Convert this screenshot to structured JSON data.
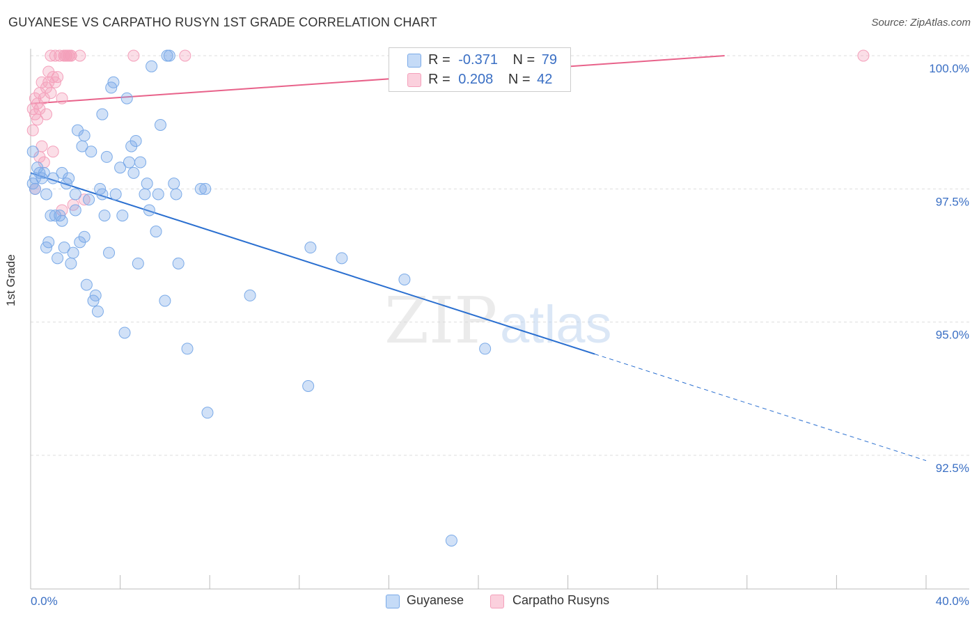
{
  "header": {
    "title": "GUYANESE VS CARPATHO RUSYN 1ST GRADE CORRELATION CHART",
    "source": "Source: ZipAtlas.com"
  },
  "colors": {
    "guyanese": "#7aaae8",
    "guyanese_line": "#2a6fd0",
    "carpatho": "#f4a0bb",
    "carpatho_line": "#e8628a",
    "grid": "#dddddd",
    "tick_label": "#3a6fc4"
  },
  "legend": {
    "row1": {
      "r_label": "R =",
      "r_value": "-0.371",
      "n_label": "N =",
      "n_value": "79"
    },
    "row2": {
      "r_label": "R =",
      "r_value": "0.208",
      "n_label": "N =",
      "n_value": "42"
    }
  },
  "bottom_legend": {
    "guyanese": "Guyanese",
    "carpatho": "Carpatho Rusyns"
  },
  "watermark": {
    "zip": "ZIP",
    "atlas": "atlas"
  },
  "chart_data": {
    "type": "scatter",
    "title": "GUYANESE VS CARPATHO RUSYN 1ST GRADE CORRELATION CHART",
    "xlabel": "",
    "ylabel": "1st Grade",
    "xlim": [
      0,
      40
    ],
    "ylim": [
      90.5,
      100.3
    ],
    "x_tick_labels": [
      "0.0%",
      "40.0%"
    ],
    "y_ticks": [
      92.5,
      95.0,
      97.5,
      100.0
    ],
    "y_tick_labels": [
      "92.5%",
      "95.0%",
      "97.5%",
      "100.0%"
    ],
    "grid": true,
    "legend_position": "top-center",
    "series": [
      {
        "name": "Guyanese",
        "r": -0.371,
        "n": 79,
        "trend": {
          "x0": 0,
          "y0": 97.8,
          "x1": 25.2,
          "y1": 94.4,
          "dash_x1": 40,
          "dash_y1": 92.4
        },
        "points": [
          [
            0.1,
            97.6
          ],
          [
            0.1,
            98.2
          ],
          [
            0.2,
            97.7
          ],
          [
            0.2,
            97.5
          ],
          [
            0.3,
            97.9
          ],
          [
            0.4,
            97.8
          ],
          [
            0.5,
            97.7
          ],
          [
            0.6,
            97.8
          ],
          [
            0.7,
            97.4
          ],
          [
            0.7,
            96.4
          ],
          [
            0.8,
            96.5
          ],
          [
            0.9,
            97.0
          ],
          [
            1.0,
            97.7
          ],
          [
            1.1,
            97.0
          ],
          [
            1.2,
            96.2
          ],
          [
            1.3,
            97.0
          ],
          [
            1.4,
            96.9
          ],
          [
            1.4,
            97.8
          ],
          [
            1.5,
            96.4
          ],
          [
            1.6,
            97.6
          ],
          [
            1.7,
            97.7
          ],
          [
            1.8,
            96.1
          ],
          [
            1.9,
            96.3
          ],
          [
            2.0,
            97.4
          ],
          [
            2.0,
            97.1
          ],
          [
            2.1,
            98.6
          ],
          [
            2.2,
            96.5
          ],
          [
            2.3,
            98.3
          ],
          [
            2.4,
            96.6
          ],
          [
            2.4,
            98.5
          ],
          [
            2.5,
            95.7
          ],
          [
            2.6,
            97.3
          ],
          [
            2.7,
            98.2
          ],
          [
            2.8,
            95.4
          ],
          [
            2.9,
            95.5
          ],
          [
            3.0,
            95.2
          ],
          [
            3.1,
            97.5
          ],
          [
            3.2,
            97.4
          ],
          [
            3.2,
            98.9
          ],
          [
            3.3,
            97.0
          ],
          [
            3.4,
            98.1
          ],
          [
            3.5,
            96.3
          ],
          [
            3.6,
            99.4
          ],
          [
            3.7,
            99.5
          ],
          [
            3.8,
            97.4
          ],
          [
            4.0,
            97.9
          ],
          [
            4.1,
            97.0
          ],
          [
            4.2,
            94.8
          ],
          [
            4.3,
            99.2
          ],
          [
            4.4,
            98.0
          ],
          [
            4.5,
            98.3
          ],
          [
            4.6,
            97.8
          ],
          [
            4.7,
            98.4
          ],
          [
            4.8,
            96.1
          ],
          [
            4.9,
            98.0
          ],
          [
            5.1,
            97.4
          ],
          [
            5.2,
            97.6
          ],
          [
            5.3,
            97.1
          ],
          [
            5.4,
            99.8
          ],
          [
            5.6,
            96.7
          ],
          [
            5.7,
            97.4
          ],
          [
            5.8,
            98.7
          ],
          [
            6.0,
            95.4
          ],
          [
            6.1,
            100.0
          ],
          [
            6.2,
            100.0
          ],
          [
            6.4,
            97.6
          ],
          [
            6.5,
            97.4
          ],
          [
            6.6,
            96.1
          ],
          [
            7.0,
            94.5
          ],
          [
            7.6,
            97.5
          ],
          [
            7.8,
            97.5
          ],
          [
            7.9,
            93.3
          ],
          [
            9.8,
            95.5
          ],
          [
            12.4,
            93.8
          ],
          [
            12.5,
            96.4
          ],
          [
            13.9,
            96.2
          ],
          [
            16.7,
            95.8
          ],
          [
            18.8,
            90.9
          ],
          [
            20.3,
            94.5
          ]
        ]
      },
      {
        "name": "Carpatho Rusyns",
        "r": 0.208,
        "n": 42,
        "trend": {
          "x0": 0,
          "y0": 99.1,
          "x1": 31.0,
          "y1": 100.0
        },
        "points": [
          [
            0.1,
            99.0
          ],
          [
            0.1,
            98.6
          ],
          [
            0.2,
            99.2
          ],
          [
            0.2,
            98.9
          ],
          [
            0.3,
            99.1
          ],
          [
            0.3,
            98.8
          ],
          [
            0.4,
            99.3
          ],
          [
            0.4,
            99.0
          ],
          [
            0.5,
            98.3
          ],
          [
            0.5,
            99.5
          ],
          [
            0.6,
            99.2
          ],
          [
            0.6,
            98.0
          ],
          [
            0.7,
            99.4
          ],
          [
            0.7,
            98.9
          ],
          [
            0.8,
            99.5
          ],
          [
            0.8,
            99.7
          ],
          [
            0.9,
            99.3
          ],
          [
            0.9,
            100.0
          ],
          [
            1.0,
            99.6
          ],
          [
            1.0,
            98.2
          ],
          [
            1.1,
            99.5
          ],
          [
            1.1,
            100.0
          ],
          [
            1.2,
            99.6
          ],
          [
            1.3,
            100.0
          ],
          [
            1.4,
            97.1
          ],
          [
            1.4,
            99.2
          ],
          [
            1.5,
            100.0
          ],
          [
            1.5,
            100.0
          ],
          [
            1.6,
            100.0
          ],
          [
            1.6,
            100.0
          ],
          [
            1.7,
            100.0
          ],
          [
            1.7,
            100.0
          ],
          [
            1.8,
            100.0
          ],
          [
            1.8,
            100.0
          ],
          [
            1.9,
            97.2
          ],
          [
            2.2,
            100.0
          ],
          [
            2.4,
            97.3
          ],
          [
            4.6,
            100.0
          ],
          [
            6.9,
            100.0
          ],
          [
            37.2,
            100.0
          ],
          [
            0.2,
            97.5
          ],
          [
            0.4,
            98.1
          ]
        ]
      }
    ]
  }
}
